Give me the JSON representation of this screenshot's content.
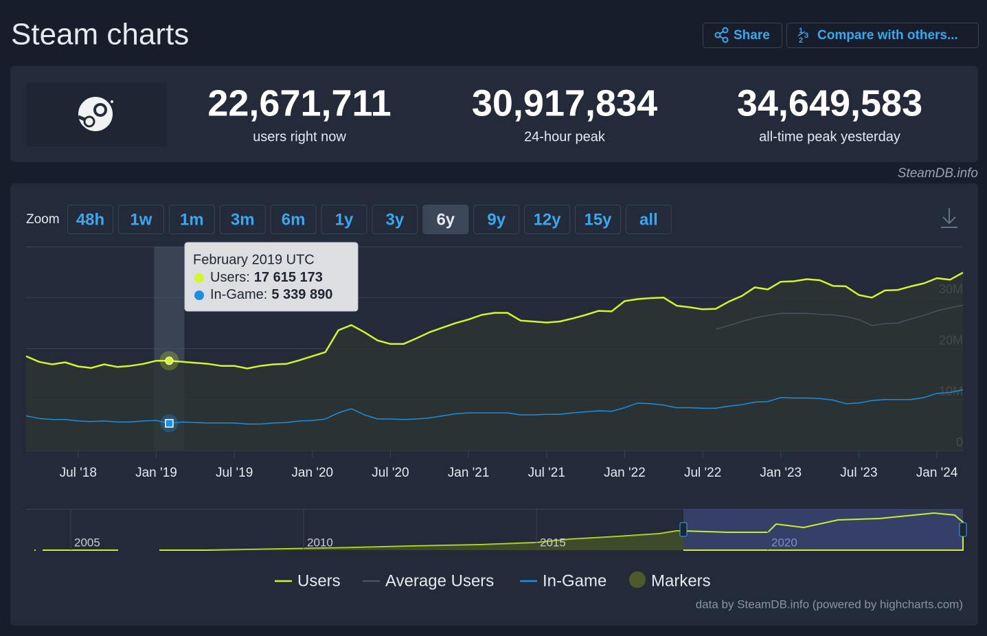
{
  "header": {
    "title": "Steam charts",
    "buttons": [
      "Share",
      "Compare with others..."
    ]
  },
  "stats": [
    {
      "value": "22,671,711",
      "label": "users right now"
    },
    {
      "value": "30,917,834",
      "label": "24-hour peak"
    },
    {
      "value": "34,649,583",
      "label": "all-time peak yesterday"
    }
  ],
  "source": "SteamDB.info",
  "zoom": {
    "label": "Zoom",
    "buttons": [
      "48h",
      "1w",
      "1m",
      "3m",
      "6m",
      "1y",
      "3y",
      "6y",
      "9y",
      "12y",
      "15y",
      "all"
    ],
    "active": "6y"
  },
  "chart_data": {
    "type": "line",
    "x": [
      "2018-03",
      "2018-04",
      "2018-05",
      "2018-06",
      "2018-07",
      "2018-08",
      "2018-09",
      "2018-10",
      "2018-11",
      "2018-12",
      "2019-01",
      "2019-02",
      "2019-03",
      "2019-04",
      "2019-05",
      "2019-06",
      "2019-07",
      "2019-08",
      "2019-09",
      "2019-10",
      "2019-11",
      "2019-12",
      "2020-01",
      "2020-02",
      "2020-03",
      "2020-04",
      "2020-05",
      "2020-06",
      "2020-07",
      "2020-08",
      "2020-09",
      "2020-10",
      "2020-11",
      "2020-12",
      "2021-01",
      "2021-02",
      "2021-03",
      "2021-04",
      "2021-05",
      "2021-06",
      "2021-07",
      "2021-08",
      "2021-09",
      "2021-10",
      "2021-11",
      "2021-12",
      "2022-01",
      "2022-02",
      "2022-03",
      "2022-04",
      "2022-05",
      "2022-06",
      "2022-07",
      "2022-08",
      "2022-09",
      "2022-10",
      "2022-11",
      "2022-12",
      "2023-01",
      "2023-02",
      "2023-03",
      "2023-04",
      "2023-05",
      "2023-06",
      "2023-07",
      "2023-08",
      "2023-09",
      "2023-10",
      "2023-11",
      "2023-12",
      "2024-01",
      "2024-02",
      "2024-03"
    ],
    "series": [
      {
        "name": "Users",
        "color": "#d4f52c",
        "values": [
          18500000,
          17400000,
          16900000,
          17300000,
          16500000,
          16200000,
          16900000,
          16400000,
          16600000,
          17000000,
          17600000,
          17615173,
          17400000,
          17200000,
          17000000,
          16600000,
          16600000,
          16100000,
          16600000,
          16900000,
          17000000,
          17700000,
          18500000,
          19300000,
          23600000,
          24600000,
          23200000,
          21600000,
          20900000,
          20900000,
          22000000,
          23200000,
          24100000,
          25000000,
          25700000,
          26600000,
          27000000,
          27000000,
          25500000,
          25300000,
          25100000,
          25300000,
          25900000,
          26600000,
          27400000,
          27300000,
          29300000,
          29700000,
          29900000,
          30000000,
          28400000,
          28100000,
          27700000,
          27800000,
          29200000,
          30300000,
          32000000,
          31600000,
          33100000,
          33200000,
          33600000,
          33400000,
          32300000,
          32200000,
          30500000,
          30000000,
          31400000,
          31500000,
          32200000,
          32800000,
          33800000,
          33500000,
          34900000
        ]
      },
      {
        "name": "Average Users",
        "color": "#4a5262",
        "values": [
          null,
          null,
          null,
          null,
          null,
          null,
          null,
          null,
          null,
          null,
          null,
          null,
          null,
          null,
          null,
          null,
          null,
          null,
          null,
          null,
          null,
          null,
          null,
          null,
          null,
          null,
          null,
          null,
          null,
          null,
          null,
          null,
          null,
          null,
          null,
          null,
          null,
          null,
          null,
          null,
          null,
          null,
          null,
          null,
          null,
          null,
          null,
          null,
          null,
          null,
          null,
          null,
          null,
          23800000,
          24500000,
          25300000,
          26000000,
          26500000,
          26900000,
          26900000,
          26900000,
          26700000,
          26600000,
          26300000,
          25700000,
          24500000,
          24900000,
          25000000,
          25800000,
          26500000,
          27400000,
          28000000,
          28500000
        ]
      },
      {
        "name": "In-Game",
        "color": "#1a8fe3",
        "values": [
          6800000,
          6300000,
          6100000,
          6100000,
          5800000,
          5700000,
          5800000,
          5600000,
          5600000,
          5800000,
          5900000,
          5339890,
          5600000,
          5500000,
          5400000,
          5400000,
          5400000,
          5200000,
          5200000,
          5400000,
          5500000,
          5800000,
          5900000,
          6200000,
          7400000,
          8200000,
          7000000,
          6200000,
          6200000,
          6100000,
          6200000,
          6400000,
          6800000,
          7200000,
          7400000,
          7400000,
          7400000,
          7400000,
          7000000,
          7000000,
          7100000,
          7100000,
          7400000,
          7600000,
          7800000,
          7700000,
          8400000,
          9300000,
          9200000,
          8900000,
          8400000,
          8400000,
          8300000,
          8300000,
          8700000,
          9000000,
          9500000,
          9600000,
          10400000,
          10300000,
          10300000,
          10200000,
          9900000,
          9200000,
          9300000,
          9800000,
          10000000,
          10000000,
          10000000,
          10400000,
          11200000,
          11400000,
          11900000
        ]
      }
    ],
    "markers_legend": "Markers",
    "xlim": [
      "2018-03",
      "2024-03"
    ],
    "xticks": [
      {
        "value": "2018-07",
        "label": "Jul '18"
      },
      {
        "value": "2019-01",
        "label": "Jan '19"
      },
      {
        "value": "2019-07",
        "label": "Jul '19"
      },
      {
        "value": "2020-01",
        "label": "Jan '20"
      },
      {
        "value": "2020-07",
        "label": "Jul '20"
      },
      {
        "value": "2021-01",
        "label": "Jan '21"
      },
      {
        "value": "2021-07",
        "label": "Jul '21"
      },
      {
        "value": "2022-01",
        "label": "Jan '22"
      },
      {
        "value": "2022-07",
        "label": "Jul '22"
      },
      {
        "value": "2023-01",
        "label": "Jan '23"
      },
      {
        "value": "2023-07",
        "label": "Jul '23"
      },
      {
        "value": "2024-01",
        "label": "Jan '24"
      }
    ],
    "ylim": [
      0,
      40000000
    ],
    "yticks": [
      0,
      {
        "value": 10000000,
        "label": "10M"
      },
      {
        "value": 20000000,
        "label": "20M"
      },
      {
        "value": 30000000,
        "label": "30M"
      }
    ],
    "grid": true,
    "tooltip": {
      "title": "February 2019 UTC",
      "lines": [
        {
          "name": "Users:",
          "value": "17 615 173"
        },
        {
          "name": "In-Game:",
          "value": "5 339 890"
        }
      ]
    },
    "navigator_labels": [
      "2005",
      "2010",
      "2015",
      "2020"
    ]
  },
  "credit": "data by SteamDB.info (powered by highcharts.com)"
}
